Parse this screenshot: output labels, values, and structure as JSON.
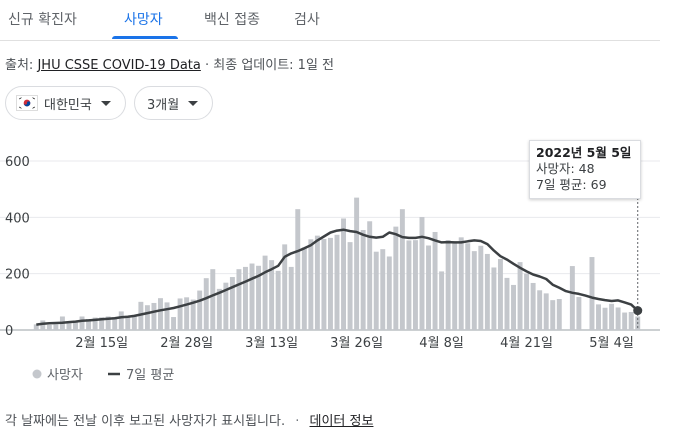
{
  "tabs": [
    {
      "label": "신규 확진자",
      "active": false
    },
    {
      "label": "사망자",
      "active": true
    },
    {
      "label": "백신 접종",
      "active": false
    },
    {
      "label": "검사",
      "active": false
    }
  ],
  "source": {
    "prefix": "출처:",
    "link": "JHU CSSE COVID-19 Data",
    "updated": "· 최종 업데이트: 1일 전"
  },
  "filters": {
    "country": "대한민국",
    "period": "3개월"
  },
  "colors": {
    "bar": "#c4c7cc",
    "line": "#3c4043",
    "accent": "#1a73e8",
    "grid": "#e8eaed"
  },
  "tooltip": {
    "date": "2022년 5월 5일",
    "deaths": "사망자: 48",
    "avg": "7일 평균: 69"
  },
  "legend": {
    "bars": "사망자",
    "line": "7일 평균"
  },
  "footer": {
    "note": "각 날짜에는 전날 이후 보고된 사망자가 표시됩니다.",
    "sep": "·",
    "link": "데이터 정보"
  },
  "chart_data": {
    "type": "bar",
    "ylim": [
      0,
      600
    ],
    "yticks": [
      0,
      200,
      400,
      600
    ],
    "xtick_labels": [
      "2월 15일",
      "2월 28일",
      "3월 13일",
      "3월 26일",
      "4월 8일",
      "4월 21일",
      "5월 4일"
    ],
    "xtick_indices": [
      10,
      23,
      36,
      49,
      62,
      75,
      88
    ],
    "grid": true,
    "legend_position": "bottom-left",
    "start_date": "2022-02-05",
    "end_date": "2022-05-05",
    "series": [
      {
        "name": "사망자",
        "type": "bar",
        "values": [
          20,
          34,
          18,
          20,
          48,
          24,
          30,
          48,
          39,
          44,
          45,
          48,
          45,
          66,
          48,
          52,
          100,
          88,
          96,
          113,
          98,
          46,
          112,
          116,
          108,
          140,
          184,
          216,
          146,
          168,
          188,
          216,
          224,
          236,
          228,
          264,
          248,
          210,
          304,
          224,
          429,
          293,
          322,
          335,
          323,
          327,
          338,
          396,
          312,
          470,
          355,
          386,
          278,
          287,
          261,
          367,
          429,
          318,
          319,
          401,
          300,
          348,
          208,
          319,
          309,
          329,
          308,
          280,
          299,
          270,
          222,
          252,
          185,
          160,
          241,
          200,
          167,
          141,
          130,
          106,
          110,
          0,
          227,
          117,
          0,
          259,
          91,
          79,
          93,
          80,
          62,
          64,
          48
        ]
      },
      {
        "name": "7일 평균",
        "type": "line",
        "values": [
          19,
          22,
          24,
          25,
          26,
          28,
          30,
          33,
          34,
          36,
          38,
          40,
          42,
          45,
          47,
          50,
          55,
          60,
          65,
          70,
          74,
          78,
          84,
          90,
          97,
          104,
          113,
          123,
          132,
          142,
          152,
          162,
          172,
          182,
          192,
          205,
          216,
          228,
          260,
          272,
          280,
          290,
          301,
          318,
          332,
          346,
          353,
          356,
          351,
          348,
          338,
          331,
          328,
          331,
          346,
          340,
          330,
          327,
          327,
          331,
          326,
          318,
          311,
          312,
          311,
          311,
          315,
          318,
          316,
          305,
          282,
          262,
          250,
          235,
          221,
          208,
          197,
          190,
          181,
          161,
          150,
          138,
          132,
          128,
          122,
          115,
          110,
          106,
          103,
          105,
          98,
          90,
          69
        ]
      }
    ]
  }
}
